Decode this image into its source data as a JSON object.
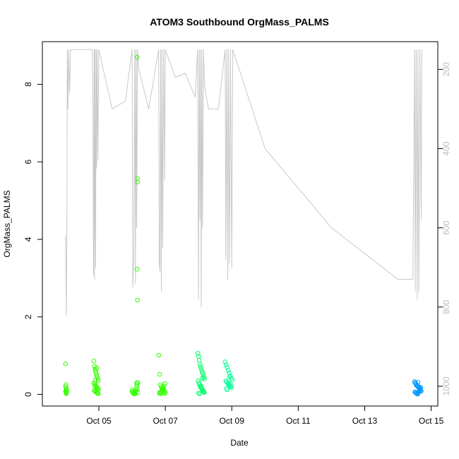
{
  "chart_data": {
    "type": "scatter",
    "title": "ATOM3 Southbound OrgMass_PALMS",
    "xlabel": "Date",
    "ylabel": "OrgMass_PALMS",
    "x_tick_labels": [
      "Oct 05",
      "Oct 07",
      "Oct 09",
      "Oct 11",
      "Oct 13",
      "Oct 15"
    ],
    "x_tick_values": [
      5,
      7,
      9,
      11,
      13,
      15
    ],
    "xlim": [
      3.3,
      15.2
    ],
    "ylim": [
      -0.3,
      9.1
    ],
    "y_ticks": [
      0,
      2,
      4,
      6,
      8
    ],
    "right_axis": {
      "ticks": [
        200,
        400,
        600,
        800,
        1000
      ],
      "ylim": [
        1050,
        130
      ],
      "color": "#bdbdbd",
      "inverted": true
    },
    "grid": false,
    "legend": "none",
    "colors": {
      "line": "#c8c8c8",
      "point_early": "#33ff00",
      "point_mid": "#00ff99",
      "point_late": "#0099ff"
    },
    "series": [
      {
        "values_x": [
          4.0,
          4.01,
          4.02,
          4.03,
          4.0,
          4.01,
          4.02,
          4.03,
          4.0,
          4.01,
          4.02
        ],
        "values_y": [
          0.79,
          0.25,
          0.15,
          0.1,
          0.08,
          0.05,
          0.03,
          0.12,
          0.2,
          0.07,
          0.02
        ],
        "color": "#33ff00"
      },
      {
        "values_x": [
          4.85,
          4.87,
          4.88,
          4.9,
          4.92,
          4.93,
          4.95,
          4.97,
          4.98,
          4.85,
          4.88,
          4.9,
          4.93,
          4.95,
          4.97,
          4.99,
          4.86,
          4.89,
          4.91,
          4.94,
          4.96,
          4.98,
          4.87,
          4.9,
          4.93,
          4.95
        ],
        "values_y": [
          0.86,
          0.72,
          0.65,
          0.6,
          0.55,
          0.5,
          0.45,
          0.4,
          0.35,
          0.3,
          0.28,
          0.25,
          0.2,
          0.18,
          0.15,
          0.12,
          0.1,
          0.08,
          0.06,
          0.05,
          0.03,
          0.02,
          0.22,
          0.38,
          0.68,
          0.12
        ],
        "color": "#33ff00"
      },
      {
        "values_x": [
          6.0,
          6.03,
          6.05,
          6.08,
          6.1,
          6.12,
          6.14,
          6.16,
          6.0,
          6.03,
          6.06,
          6.09,
          6.11,
          6.13,
          6.15,
          6.17
        ],
        "values_y": [
          0.12,
          0.08,
          0.05,
          0.03,
          0.02,
          0.1,
          0.3,
          0.15,
          0.07,
          0.04,
          0.01,
          0.06,
          0.09,
          0.2,
          0.25,
          0.05
        ],
        "color": "#33ff00"
      },
      {
        "values_x": [
          6.15,
          6.16,
          6.17,
          6.15,
          6.16,
          6.17
        ],
        "values_y": [
          8.7,
          5.57,
          5.48,
          3.23,
          2.43,
          0.3
        ],
        "color": "#33ff00"
      },
      {
        "values_x": [
          6.8,
          6.83,
          6.85,
          6.88,
          6.9,
          6.93,
          6.95,
          6.98,
          7.0,
          6.82,
          6.86,
          6.89,
          6.92,
          6.96,
          6.99,
          6.84,
          6.87,
          6.91,
          6.94,
          6.97
        ],
        "values_y": [
          1.01,
          0.52,
          0.25,
          0.2,
          0.15,
          0.12,
          0.1,
          0.08,
          0.05,
          0.03,
          0.02,
          0.07,
          0.18,
          0.22,
          0.28,
          0.06,
          0.04,
          0.1,
          0.14,
          0.02
        ],
        "color": "#33ff00"
      },
      {
        "values_x": [
          7.98,
          8.0,
          8.02,
          8.04,
          8.06,
          8.08,
          8.1,
          8.12,
          8.14,
          8.16,
          8.18,
          7.99,
          8.01,
          8.03,
          8.05,
          8.07,
          8.09,
          8.11,
          8.13,
          8.15,
          8.17,
          8.0,
          8.04,
          8.08,
          8.12,
          8.16
        ],
        "values_y": [
          1.06,
          0.98,
          0.88,
          0.78,
          0.72,
          0.66,
          0.6,
          0.55,
          0.5,
          0.45,
          0.4,
          0.35,
          0.3,
          0.25,
          0.2,
          0.18,
          0.15,
          0.12,
          0.1,
          0.08,
          0.05,
          0.03,
          0.02,
          0.22,
          0.42,
          0.07
        ],
        "color": "#00ff66"
      },
      {
        "values_x": [
          8.8,
          8.83,
          8.86,
          8.89,
          8.92,
          8.95,
          8.98,
          9.01,
          8.82,
          8.85,
          8.88,
          8.91,
          8.94,
          8.97,
          9.0,
          8.84,
          8.87,
          8.9,
          8.93,
          8.96
        ],
        "values_y": [
          0.84,
          0.76,
          0.7,
          0.62,
          0.55,
          0.48,
          0.42,
          0.38,
          0.35,
          0.32,
          0.28,
          0.25,
          0.22,
          0.2,
          0.18,
          0.15,
          0.12,
          0.3,
          0.45,
          0.26
        ],
        "color": "#00ff99"
      },
      {
        "values_x": [
          14.5,
          14.52,
          14.54,
          14.56,
          14.58,
          14.6,
          14.62,
          14.64,
          14.66,
          14.68,
          14.7,
          14.51,
          14.53,
          14.55,
          14.57,
          14.59,
          14.61,
          14.63,
          14.65,
          14.67,
          14.69,
          14.55,
          14.6,
          14.65
        ],
        "values_y": [
          0.33,
          0.3,
          0.28,
          0.25,
          0.22,
          0.2,
          0.18,
          0.15,
          0.12,
          0.1,
          0.08,
          0.06,
          0.05,
          0.03,
          0.02,
          0.01,
          0.04,
          0.07,
          0.11,
          0.14,
          0.17,
          0.24,
          0.31,
          0.19
        ],
        "color": "#0099ff"
      }
    ],
    "line_series": {
      "color": "#c8c8c8",
      "x": [
        4.0,
        4.02,
        4.04,
        4.05,
        4.07,
        4.09,
        4.12,
        4.15,
        4.8,
        4.82,
        4.84,
        4.86,
        4.87,
        4.88,
        4.9,
        4.92,
        4.93,
        4.95,
        4.97,
        5.0,
        5.4,
        5.8,
        6.0,
        6.02,
        6.05,
        6.08,
        6.1,
        6.12,
        6.14,
        6.16,
        6.2,
        6.5,
        6.8,
        6.82,
        6.84,
        6.86,
        6.88,
        6.9,
        6.92,
        6.95,
        6.98,
        7.0,
        7.3,
        7.6,
        7.9,
        7.97,
        8.0,
        8.02,
        8.04,
        8.06,
        8.08,
        8.1,
        8.12,
        8.15,
        8.18,
        8.3,
        8.6,
        8.8,
        8.82,
        8.85,
        8.88,
        8.9,
        8.93,
        8.96,
        9.0,
        9.03,
        10.0,
        12.0,
        14.0,
        14.45,
        14.5,
        14.52,
        14.55,
        14.58,
        14.6,
        14.63,
        14.66,
        14.7,
        14.72
      ],
      "y_right": [
        620,
        820,
        560,
        150,
        300,
        150,
        260,
        150,
        150,
        250,
        720,
        150,
        730,
        150,
        700,
        150,
        450,
        150,
        430,
        150,
        300,
        280,
        150,
        750,
        680,
        150,
        740,
        150,
        600,
        150,
        200,
        300,
        150,
        690,
        710,
        150,
        760,
        150,
        650,
        150,
        480,
        150,
        220,
        210,
        270,
        150,
        780,
        150,
        580,
        150,
        800,
        150,
        600,
        150,
        240,
        300,
        300,
        150,
        680,
        150,
        730,
        150,
        690,
        150,
        700,
        150,
        400,
        600,
        730,
        730,
        150,
        760,
        150,
        780,
        150,
        760,
        150,
        580,
        150
      ]
    }
  }
}
